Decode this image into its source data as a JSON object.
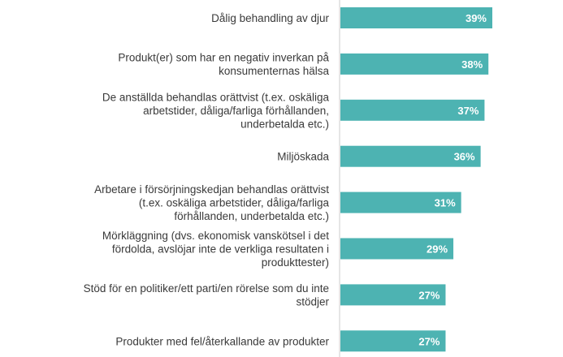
{
  "chart_data": {
    "type": "bar",
    "orientation": "horizontal",
    "color": "#4db3b2",
    "axis_line_color": "#cccccc",
    "xlim": [
      0,
      100
    ],
    "value_suffix": "%",
    "categories": [
      [
        "Dålig behandling av djur"
      ],
      [
        "Produkt(er) som har en negativ inverkan på",
        "konsumenternas hälsa"
      ],
      [
        "De anställda behandlas orättvist (t.ex. oskäliga",
        "arbetstider, dåliga/farliga förhållanden,",
        "underbetalda etc.)"
      ],
      [
        "Miljöskada"
      ],
      [
        "Arbetare i försörjningskedjan behandlas orättvist",
        "(t.ex. oskäliga arbetstider, dåliga/farliga",
        "förhållanden, underbetalda etc.)"
      ],
      [
        "Mörkläggning (dvs. ekonomisk vanskötsel i det",
        "fördolda, avslöjar inte de verkliga resultaten i",
        "produkttester)"
      ],
      [
        "Stöd för en politiker/ett parti/en rörelse som du inte",
        "stödjer"
      ],
      [
        "Produkter med fel/återkallande av produkter"
      ]
    ],
    "values": [
      39,
      38,
      37,
      36,
      31,
      29,
      27,
      27
    ],
    "value_labels": [
      "39%",
      "38%",
      "37%",
      "36%",
      "31%",
      "29%",
      "27%",
      "27%"
    ]
  }
}
